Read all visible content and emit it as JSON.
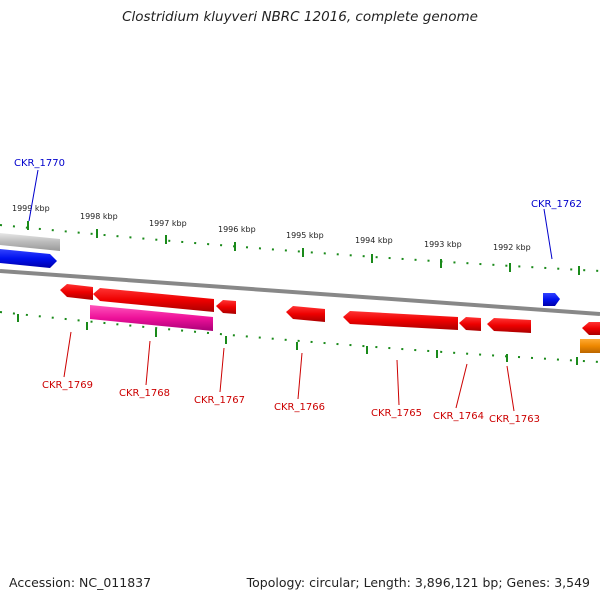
{
  "title": "Clostridium kluyveri NBRC 12016, complete genome",
  "footer": {
    "accession": "Accession: NC_011837",
    "info": "Topology: circular; Length: 3,896,121 bp; Genes: 3,549"
  },
  "scale_labels": [
    "1999 kbp",
    "1998 kbp",
    "1997 kbp",
    "1996 kbp",
    "1995 kbp",
    "1994 kbp",
    "1993 kbp",
    "1992 kbp"
  ],
  "genes_forward": [
    {
      "label": "CKR_1770",
      "color": "#0000cc"
    },
    {
      "label": "CKR_1762",
      "color": "#0000cc"
    }
  ],
  "genes_reverse": [
    {
      "label": "CKR_1769",
      "color": "#cc0000"
    },
    {
      "label": "CKR_1768",
      "color": "#cc0000"
    },
    {
      "label": "CKR_1767",
      "color": "#cc0000"
    },
    {
      "label": "CKR_1766",
      "color": "#cc0000"
    },
    {
      "label": "CKR_1765",
      "color": "#cc0000"
    },
    {
      "label": "CKR_1764",
      "color": "#cc0000"
    },
    {
      "label": "CKR_1763",
      "color": "#cc0000"
    }
  ],
  "colors": {
    "gene_red": "#ee0000",
    "gene_blue": "#0000ee",
    "gene_pink": "#ee1199",
    "gene_orange": "#ee8800",
    "gene_gray": "#bbbbbb",
    "tick_green": "#1a8a1a",
    "backbone": "#888888"
  }
}
